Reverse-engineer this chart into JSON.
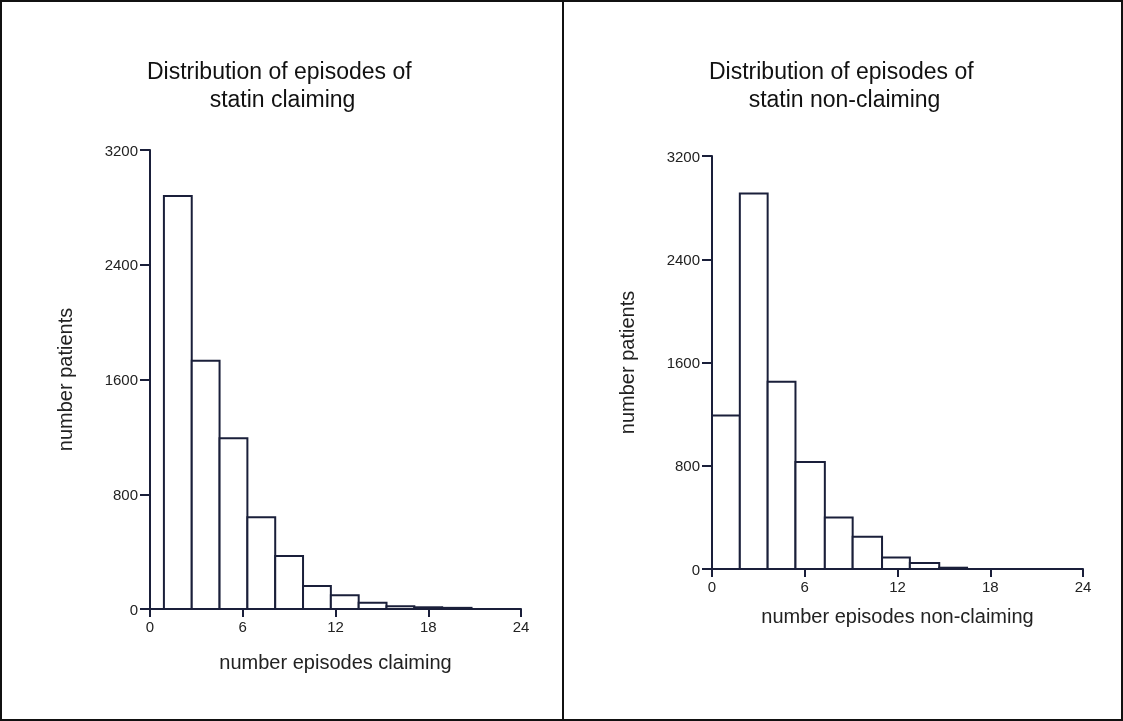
{
  "chart_data": [
    {
      "type": "histogram",
      "title": "Distribution of episodes of statin claiming",
      "xlabel": "number episodes claiming",
      "ylabel": "number patients",
      "bins": [
        0.9,
        2.7,
        4.5,
        6.3,
        8.1,
        9.9,
        11.7,
        13.5,
        15.3,
        17.1,
        18.9,
        20.8
      ],
      "values": [
        2880,
        1730,
        1190,
        640,
        370,
        160,
        95,
        44,
        19,
        12,
        8
      ],
      "color": "#ffffff",
      "xlim": [
        0,
        24
      ],
      "xticks": [
        0,
        6,
        12,
        18,
        24
      ],
      "ylim": [
        0,
        3200
      ],
      "yticks": [
        0,
        800,
        1600,
        2400,
        3200
      ],
      "grid": false
    },
    {
      "type": "histogram",
      "title": "Distribution of episodes of statin non-claiming",
      "xlabel": "number episodes non-claiming",
      "ylabel": "number patients",
      "bins": [
        0,
        1.8,
        3.6,
        5.4,
        7.3,
        9.1,
        11,
        12.8,
        14.7,
        16.5
      ],
      "values": [
        1190,
        2910,
        1450,
        830,
        400,
        250,
        90,
        46,
        10
      ],
      "color": "#ffffff",
      "xlim": [
        0,
        24
      ],
      "xticks": [
        0,
        6,
        12,
        18,
        24
      ],
      "ylim": [
        0,
        3200
      ],
      "yticks": [
        0,
        800,
        1600,
        2400,
        3200
      ],
      "grid": false
    }
  ]
}
